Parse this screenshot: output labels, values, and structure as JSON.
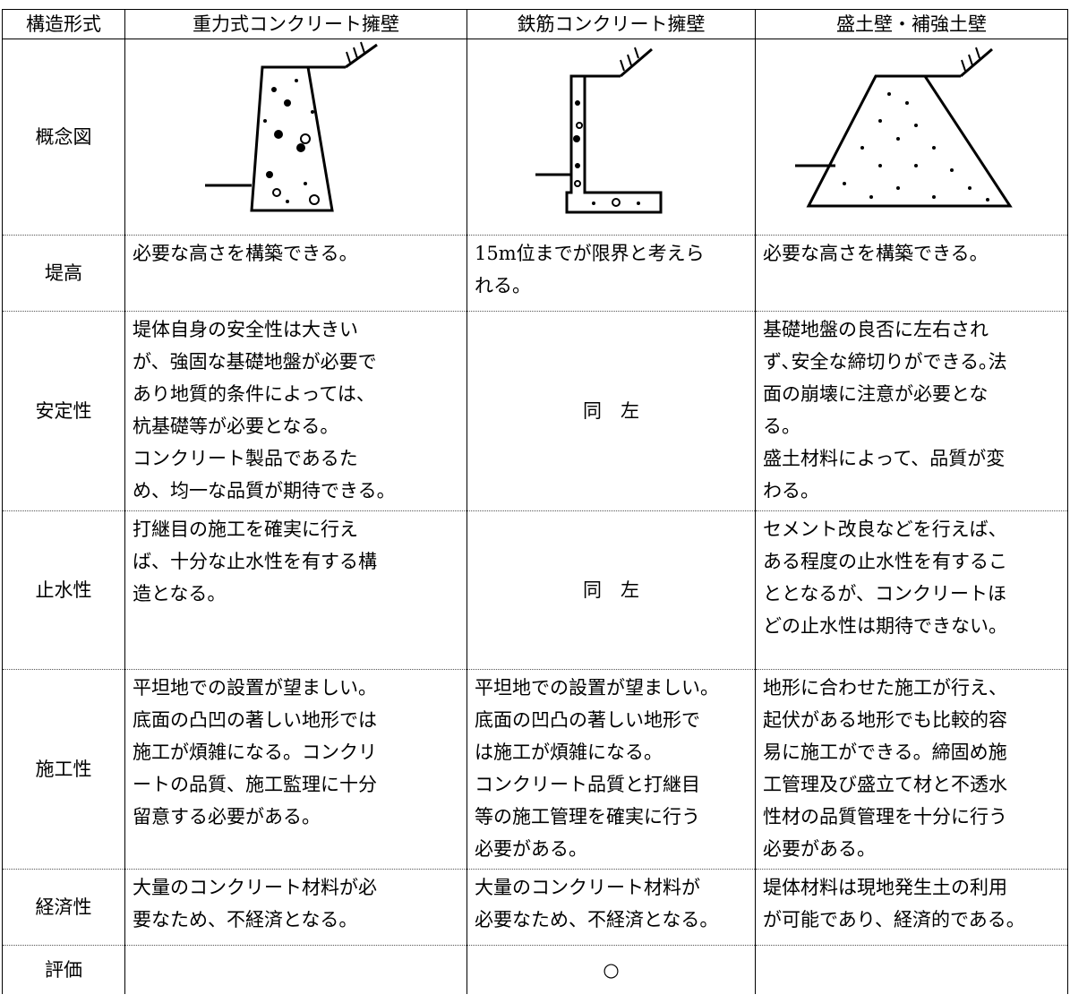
{
  "table": {
    "header": [
      "構造形式",
      "重力式コンクリート擁壁",
      "鉄筋コンクリート擁壁",
      "盛土壁・補強土壁"
    ],
    "diagram_label": "概念図",
    "rows": [
      [
        "堤高",
        [
          "必要な高さを構築できる。"
        ],
        [
          "15m位までが限界と考えら",
          "れる。"
        ],
        [
          "必要な高さを構築できる。"
        ]
      ],
      [
        "安定性",
        [
          "堤体自身の安全性は大きい",
          "が、強固な基礎地盤が必要で",
          "あり地質的条件によっては、",
          "杭基礎等が必要となる。",
          "コンクリート製品であるた",
          "め、均一な品質が期待できる。"
        ],
        [
          "同　左"
        ],
        [
          "基礎地盤の良否に左右され",
          "ず､安全な締切りができる｡法",
          "面の崩壊に注意が必要とな",
          "る。",
          "盛土材料によって、品質が変",
          "わる。"
        ]
      ],
      [
        "止水性",
        [
          "打継目の施工を確実に行え",
          "ば、十分な止水性を有する構",
          "造となる。"
        ],
        [
          "同　左"
        ],
        [
          "セメント改良などを行えば、",
          "ある程度の止水性を有するこ",
          "ととなるが、コンクリートほ",
          "どの止水性は期待できない。"
        ]
      ],
      [
        "施工性",
        [
          "平坦地での設置が望ましい。",
          "底面の凸凹の著しい地形では",
          "施工が煩雑になる。コンクリ",
          "ートの品質、施工監理に十分",
          "留意する必要がある。"
        ],
        [
          "平坦地での設置が望ましい。",
          "底面の凹凸の著しい地形で",
          "は施工が煩雑になる。",
          "コンクリート品質と打継目",
          "等の施工管理を確実に行う",
          "必要がある。"
        ],
        [
          "地形に合わせた施工が行え、",
          "起伏がある地形でも比較的容",
          "易に施工ができる。締固め施",
          "工管理及び盛立て材と不透水",
          "性材の品質管理を十分に行う",
          "必要がある。"
        ]
      ],
      [
        "経済性",
        [
          "大量のコンクリート材料が必",
          "要なため、不経済となる。"
        ],
        [
          "大量のコンクリート材料が",
          "必要なため、不経済となる。"
        ],
        [
          "堤体材料は現地発生土の利用",
          "が可能であり、経済的である。"
        ]
      ],
      [
        "評価",
        [],
        [
          "○"
        ],
        []
      ]
    ]
  }
}
